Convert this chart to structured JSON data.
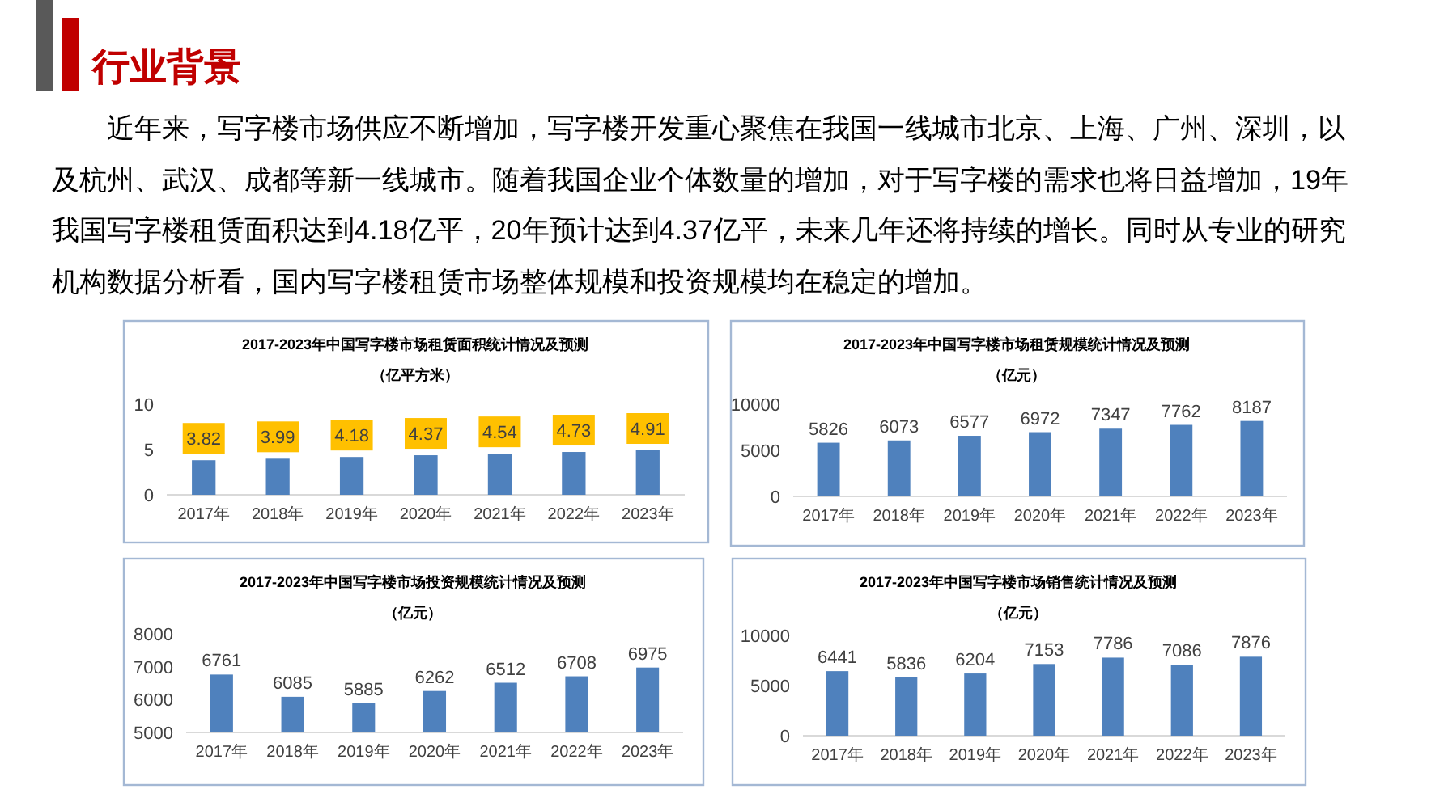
{
  "chart_data": [
    {
      "type": "other",
      "title": "行业背景",
      "annotations": [
        "近年来，写字楼市场供应不断增加，写字楼开发重心聚焦在我国一线城市北京、上海、广州、深圳，以及杭州、武汉、成都等新一线城市。随着我国企业个体数量的增加，对于写字楼的需求也将日益增加，19年我国写字楼租赁面积达到4.18亿平，20年预计达到4.37亿平，未来几年还将持续的增长。同时从专业的研究机构数据分析看，国内写字楼租赁市场整体规模和投资规模均在稳定的增加。"
      ]
    },
    {
      "type": "bar",
      "title": "2017-2023年中国写字楼市场租赁面积统计情况及预测",
      "subtitle": "（亿平方米）",
      "categories": [
        "2017年",
        "2018年",
        "2019年",
        "2020年",
        "2021年",
        "2022年",
        "2023年"
      ],
      "values": [
        3.82,
        3.99,
        4.18,
        4.37,
        4.54,
        4.73,
        4.91
      ],
      "color": "#4f81bd",
      "ylim": [
        0,
        10
      ],
      "yticks": [
        0,
        5,
        10
      ],
      "data_labels": true
    },
    {
      "type": "bar",
      "title": "2017-2023年中国写字楼市场租赁规模统计情况及预测",
      "subtitle": "（亿元）",
      "categories": [
        "2017年",
        "2018年",
        "2019年",
        "2020年",
        "2021年",
        "2022年",
        "2023年"
      ],
      "values": [
        5826,
        6073,
        6577,
        6972,
        7347,
        7762,
        8187
      ],
      "color": "#4f81bd",
      "ylim": [
        0,
        10000
      ],
      "yticks": [
        0,
        5000,
        10000
      ],
      "data_labels": true
    },
    {
      "type": "bar",
      "title": "2017-2023年中国写字楼市场投资规模统计情况及预测",
      "subtitle": "（亿元）",
      "categories": [
        "2017年",
        "2018年",
        "2019年",
        "2020年",
        "2021年",
        "2022年",
        "2023年"
      ],
      "values": [
        6761,
        6085,
        5885,
        6262,
        6512,
        6708,
        6975
      ],
      "color": "#4f81bd",
      "ylim": [
        5000,
        8000
      ],
      "yticks": [
        5000,
        6000,
        7000,
        8000
      ],
      "data_labels": true
    },
    {
      "type": "bar",
      "title": "2017-2023年中国写字楼市场销售统计情况及预测",
      "subtitle": "（亿元）",
      "categories": [
        "2017年",
        "2018年",
        "2019年",
        "2020年",
        "2021年",
        "2022年",
        "2023年"
      ],
      "values": [
        6441,
        5836,
        6204,
        7153,
        7786,
        7086,
        7876
      ],
      "color": "#4f81bd",
      "ylim": [
        0,
        10000
      ],
      "yticks": [
        0,
        5000,
        10000
      ],
      "data_labels": true
    }
  ]
}
